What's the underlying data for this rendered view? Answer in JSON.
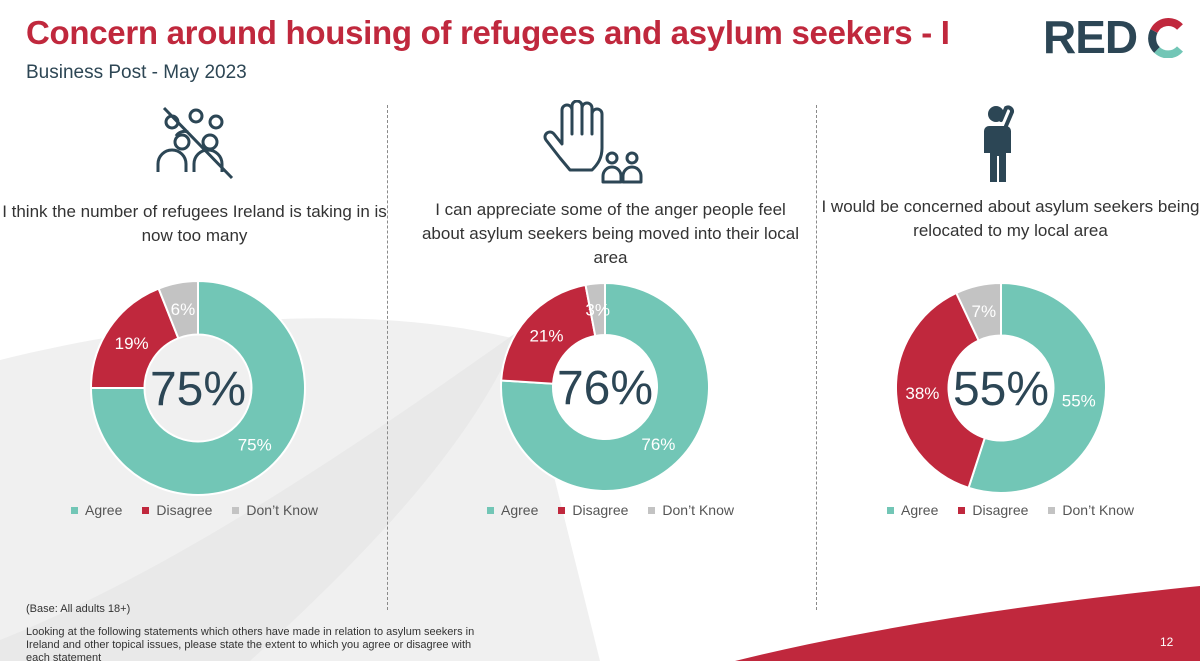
{
  "header": {
    "title": "Concern around housing of refugees and asylum seekers - I",
    "subtitle": "Business Post - May 2023",
    "logo_text": "RED"
  },
  "colors": {
    "agree": "#72c6b6",
    "disagree": "#c0283d",
    "dont_know": "#c3c3c3",
    "title": "#c0283d",
    "brand_dark": "#2c4655"
  },
  "legend": {
    "agree": "Agree",
    "disagree": "Disagree",
    "dont_know": "Don’t Know"
  },
  "chart_data": [
    {
      "type": "pie",
      "title": "I think the number of refugees Ireland is taking in is now too many",
      "icon": "crossed-out-group-icon",
      "center_label": "75%",
      "categories": [
        "Agree",
        "Disagree",
        "Don’t Know"
      ],
      "values": [
        75,
        19,
        6
      ],
      "labels": [
        "75%",
        "19%",
        "6%"
      ]
    },
    {
      "type": "pie",
      "title": "I can appreciate some of the anger people feel about asylum seekers being moved into their local area",
      "icon": "raised-hand-people-icon",
      "center_label": "76%",
      "categories": [
        "Agree",
        "Disagree",
        "Don’t Know"
      ],
      "values": [
        76,
        21,
        3
      ],
      "labels": [
        "76%",
        "21%",
        "3%"
      ]
    },
    {
      "type": "pie",
      "title": "I would be concerned about asylum seekers being relocated to my local area",
      "icon": "worried-person-icon",
      "center_label": "55%",
      "categories": [
        "Agree",
        "Disagree",
        "Don’t Know"
      ],
      "values": [
        55,
        38,
        7
      ],
      "labels": [
        "55%",
        "38%",
        "7%"
      ]
    }
  ],
  "footer": {
    "base_note": "(Base: All adults 18+)",
    "question_note": "Looking at the following statements which others have made in relation to asylum seekers in Ireland and other topical issues, please state the extent to which you agree or disagree with each statement",
    "page_number": "12"
  }
}
